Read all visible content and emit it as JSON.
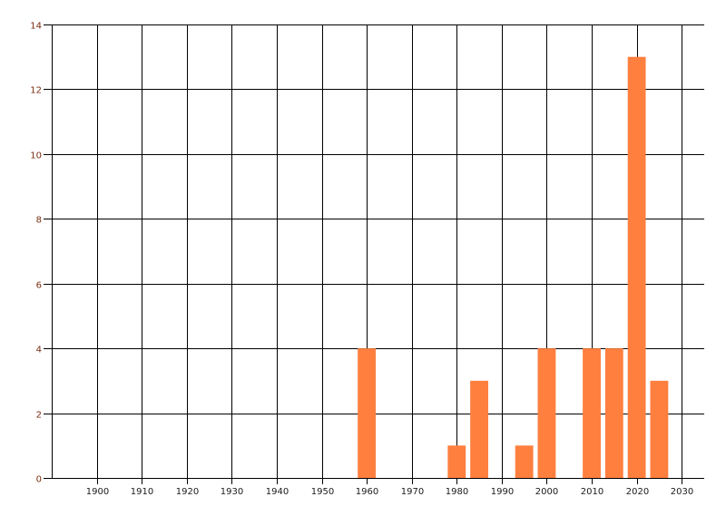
{
  "chart_data": {
    "type": "bar",
    "title": "",
    "xlabel": "",
    "ylabel": "",
    "x": [
      1960,
      1980,
      1985,
      1995,
      2000,
      2010,
      2015,
      2020,
      2025
    ],
    "values": [
      4,
      1,
      3,
      1,
      4,
      4,
      4,
      13,
      3
    ],
    "xlim": [
      1890,
      2035
    ],
    "ylim": [
      0,
      14
    ],
    "x_ticks": [
      1900,
      1910,
      1920,
      1930,
      1940,
      1950,
      1960,
      1970,
      1980,
      1990,
      2000,
      2010,
      2020,
      2030
    ],
    "y_ticks": [
      0,
      2,
      4,
      6,
      8,
      10,
      12,
      14
    ],
    "grid": true,
    "legend": "none",
    "bar_color": "#FF7F3F",
    "y_label_color": "#7a2e12",
    "x_label_color": "#1a1a1a"
  }
}
